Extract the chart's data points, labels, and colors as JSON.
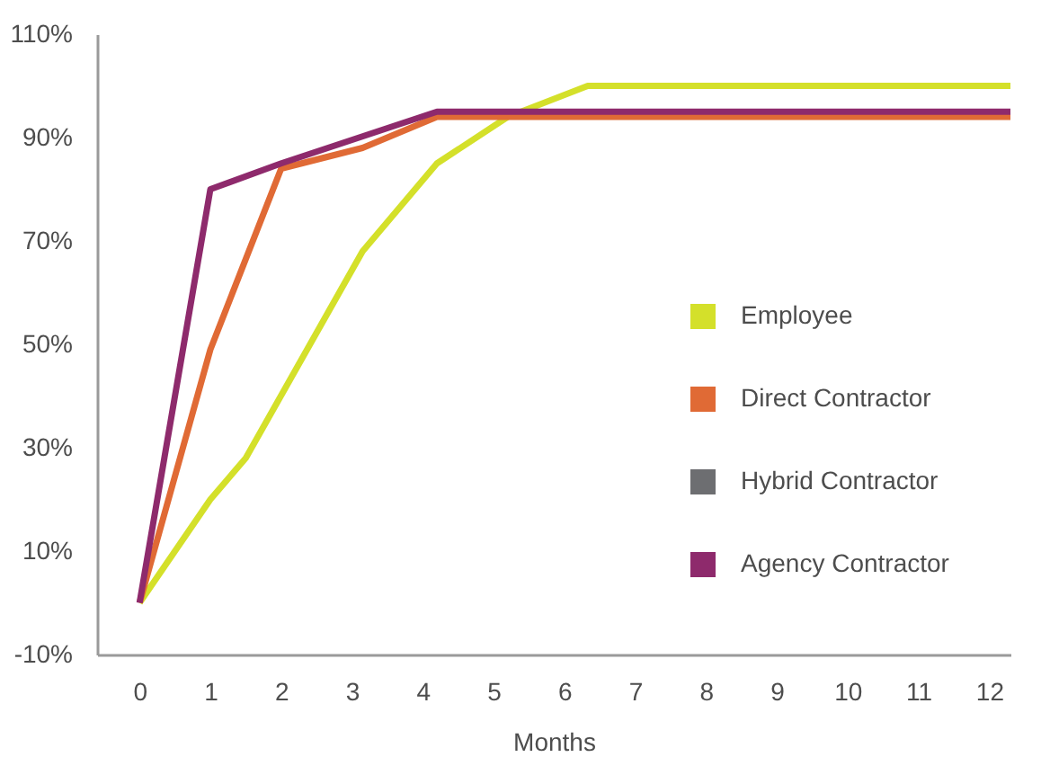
{
  "chart_data": {
    "type": "line",
    "xlabel": "Months",
    "xlim": [
      -0.6,
      12.3
    ],
    "xticks": [
      0,
      1,
      2,
      3,
      4,
      5,
      6,
      7,
      8,
      9,
      10,
      11,
      12
    ],
    "ylim": [
      -10,
      110
    ],
    "yticks": [
      {
        "value": -10,
        "label": "-10%"
      },
      {
        "value": 10,
        "label": "10%"
      },
      {
        "value": 30,
        "label": "30%"
      },
      {
        "value": 50,
        "label": "50%"
      },
      {
        "value": 70,
        "label": "70%"
      },
      {
        "value": 90,
        "label": "90%"
      },
      {
        "value": 110,
        "label": "110%"
      }
    ],
    "grid": false,
    "legend": "right",
    "marker": "none",
    "line_style": "solid",
    "series": [
      {
        "name": "Employee",
        "color": "#d4e02a",
        "x": [
          0,
          1,
          1.5,
          3.15,
          4.2,
          5.2,
          6.33,
          12.3
        ],
        "values": [
          0,
          20,
          28,
          68,
          85,
          94,
          100,
          100
        ]
      },
      {
        "name": "Direct Contractor",
        "color": "#e06a35",
        "x": [
          0,
          1,
          2,
          3.15,
          4.2,
          12.3
        ],
        "values": [
          0,
          49,
          84,
          88,
          94,
          94
        ]
      },
      {
        "name": "Hybrid Contractor",
        "color": "#6d6e71"
      },
      {
        "name": "Agency Contractor",
        "color": "#8e2a6c",
        "x": [
          0,
          1,
          2,
          4.2,
          12.3
        ],
        "values": [
          0,
          80,
          85,
          95,
          95
        ]
      }
    ]
  }
}
